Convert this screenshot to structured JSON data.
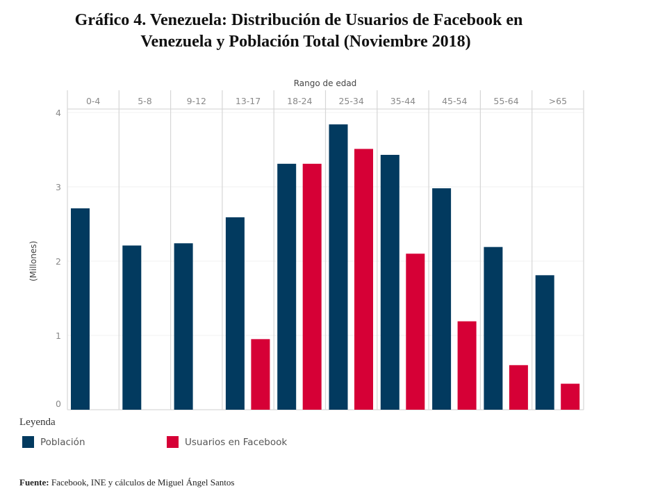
{
  "chart_data": {
    "type": "bar",
    "title": "Gráfico 4. Venezuela: Distribución de Usuarios de Facebook en Venezuela y Población Total (Noviembre 2018)",
    "title_lines": [
      "Gráfico 4. Venezuela: Distribución de Usuarios de Facebook en",
      "Venezuela y Población Total (Noviembre 2018)"
    ],
    "xlabel": "Rango de edad",
    "ylabel": "(Millones)",
    "categories": [
      "0-4",
      "5-8",
      "9-12",
      "13-17",
      "18-24",
      "25-34",
      "35-44",
      "45-54",
      "55-64",
      ">65"
    ],
    "series": [
      {
        "name": "Población",
        "color": "#023a5f",
        "values": [
          2.71,
          2.21,
          2.24,
          2.59,
          3.31,
          3.84,
          3.43,
          2.98,
          2.19,
          1.81
        ]
      },
      {
        "name": "Usuarios en Facebook",
        "color": "#d60036",
        "values": [
          null,
          null,
          null,
          0.95,
          3.31,
          3.51,
          2.1,
          1.19,
          0.6,
          0.35
        ]
      }
    ],
    "ylim": [
      0,
      4.0
    ],
    "yticks": [
      0,
      1,
      2,
      3,
      4
    ],
    "grid": true,
    "legend": {
      "title": "Leyenda",
      "placement": "bottom-left"
    }
  },
  "source": {
    "label": "Fuente:",
    "text": " Facebook, INE y cálculos de Miguel Ángel Santos"
  }
}
